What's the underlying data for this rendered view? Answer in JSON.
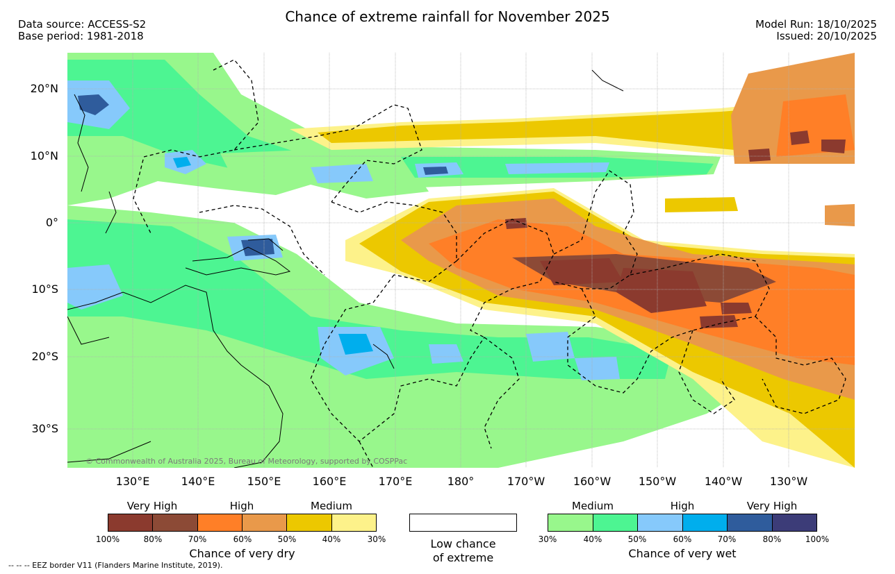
{
  "header": {
    "title": "Chance of extreme rainfall for November 2025",
    "data_source": "Data source: ACCESS-S2",
    "base_period": "Base period: 1981-2018",
    "model_run": "Model Run: 18/10/2025",
    "issued": "Issued: 20/10/2025"
  },
  "map": {
    "lat_labels": [
      "20°N",
      "10°N",
      "0°",
      "10°S",
      "20°S",
      "30°S"
    ],
    "lon_labels": [
      "130°E",
      "140°E",
      "150°E",
      "160°E",
      "170°E",
      "180°",
      "170°W",
      "160°W",
      "150°W",
      "140°W",
      "130°W"
    ],
    "copyright": "© Commonwealth of Australia 2025, Bureau of Meteorology, supported by COSPPac"
  },
  "legend_dry": {
    "group_labels": [
      "Very High",
      "High",
      "Medium"
    ],
    "colors": [
      "#8b3a2e",
      "#8c4a36",
      "#ff7f27",
      "#e9994a",
      "#ecc800",
      "#fdf28a"
    ],
    "ticks": [
      "100%",
      "80%",
      "70%",
      "60%",
      "50%",
      "40%",
      "30%"
    ],
    "title": "Chance of very dry"
  },
  "legend_low": {
    "line1": "Low chance",
    "line2": "of extreme"
  },
  "legend_wet": {
    "group_labels": [
      "Medium",
      "High",
      "Very High"
    ],
    "colors": [
      "#98f78c",
      "#4df592",
      "#86c9fb",
      "#00aeed",
      "#2f5c9c",
      "#3c3c78"
    ],
    "ticks": [
      "30%",
      "40%",
      "50%",
      "60%",
      "70%",
      "80%",
      "100%"
    ],
    "title": "Chance of very wet"
  },
  "footer": {
    "eez_note": "-- -- -- EEZ border V11 (Flanders Marine Institute, 2019)."
  }
}
